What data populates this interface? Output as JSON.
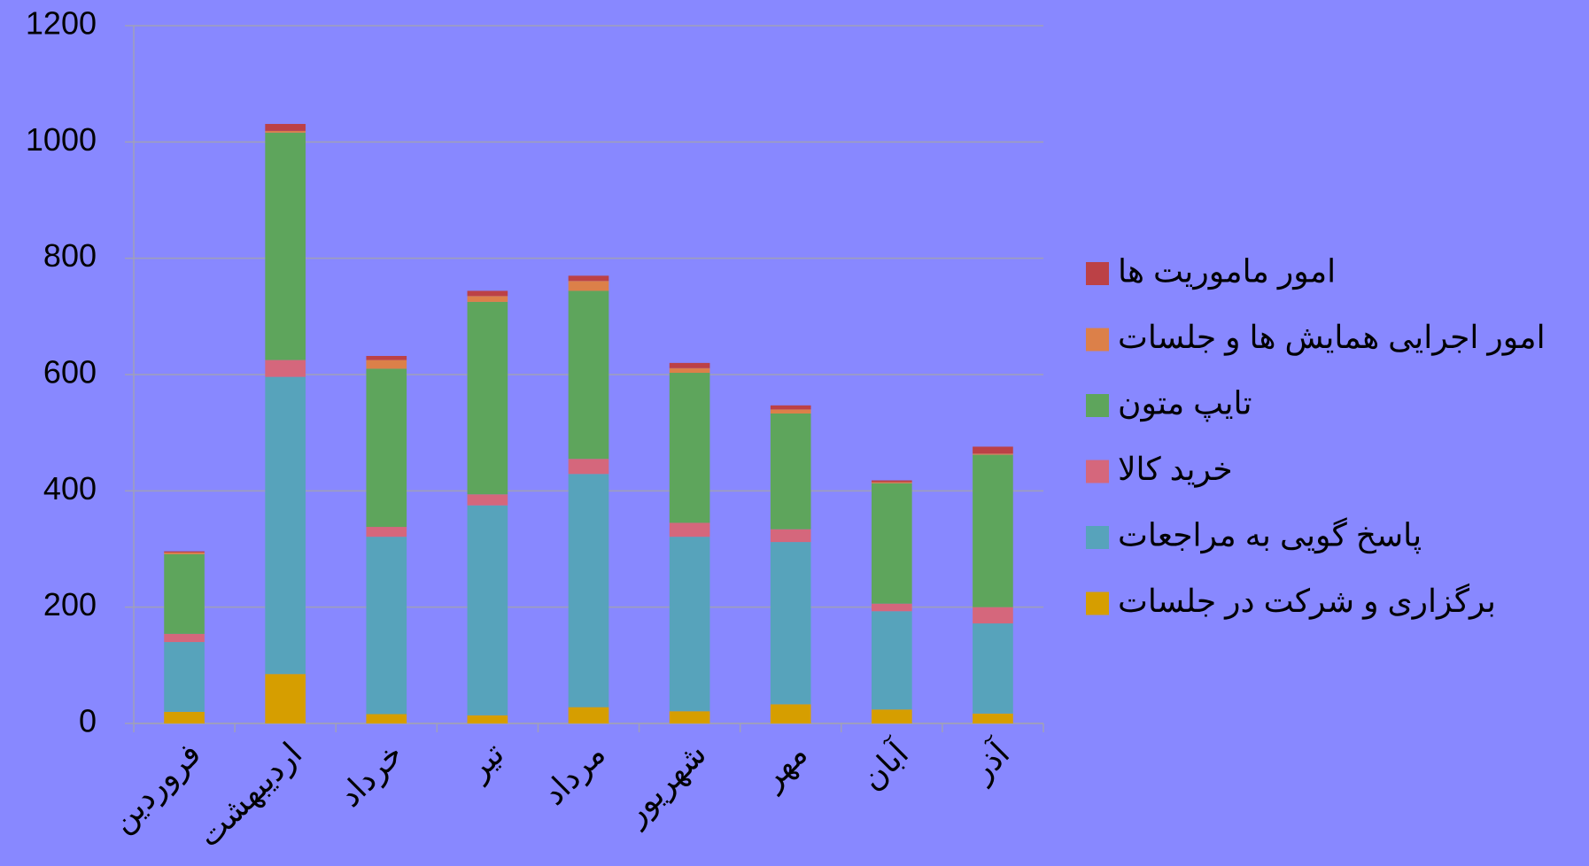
{
  "chart_data": {
    "type": "stacked_bar",
    "categories": [
      "فروردین",
      "اردیبهشت",
      "خرداد",
      "تیر",
      "مرداد",
      "شهریور",
      "مهر",
      "آبان",
      "آذر"
    ],
    "series": [
      {
        "name": "برگزاری و شرکت در جلسات",
        "color": "#d69e00",
        "values": [
          20,
          85,
          16,
          14,
          28,
          21,
          33,
          24,
          17
        ]
      },
      {
        "name": "پاسخ گویی به مراجعات",
        "color": "#57a3bb",
        "values": [
          120,
          511,
          305,
          361,
          401,
          300,
          279,
          169,
          155
        ]
      },
      {
        "name": "خرید کالا",
        "color": "#d5677c",
        "values": [
          14,
          29,
          17,
          19,
          26,
          24,
          22,
          13,
          28
        ]
      },
      {
        "name": "تایپ متون",
        "color": "#5ea55c",
        "values": [
          137,
          391,
          272,
          331,
          289,
          258,
          199,
          207,
          262
        ]
      },
      {
        "name": "امور اجرایی  همایش ها و جلسات",
        "color": "#dc8049",
        "values": [
          3,
          3,
          15,
          10,
          17,
          8,
          7,
          2,
          2
        ]
      },
      {
        "name": "امور ماموریت ها",
        "color": "#bc4146",
        "values": [
          2,
          12,
          7,
          9,
          9,
          9,
          7,
          3,
          12
        ]
      }
    ],
    "ylim": [
      0,
      1200
    ],
    "yticks": [
      0,
      200,
      400,
      600,
      800,
      1000,
      1200
    ],
    "grid": true,
    "legend": "right"
  }
}
